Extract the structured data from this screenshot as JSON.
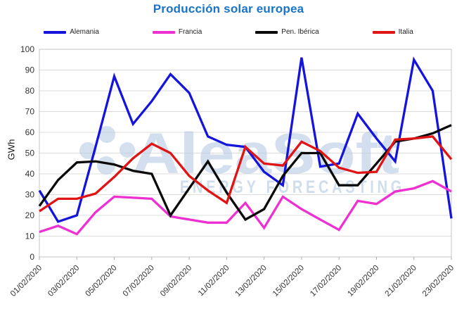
{
  "title": "Producción solar europea",
  "watermark": {
    "line1": "AleaSoft",
    "line2": "ENERGY FORECASTING"
  },
  "chart_data": {
    "type": "line",
    "title": "Producción solar europea",
    "xlabel": "",
    "ylabel": "GWh",
    "ylim": [
      0,
      100
    ],
    "ytick_step": 10,
    "grid": "horizontal",
    "legend_position": "top",
    "x": [
      "01/02/2020",
      "02/02/2020",
      "03/02/2020",
      "04/02/2020",
      "05/02/2020",
      "06/02/2020",
      "07/02/2020",
      "08/02/2020",
      "09/02/2020",
      "10/02/2020",
      "11/02/2020",
      "12/02/2020",
      "13/02/2020",
      "14/02/2020",
      "15/02/2020",
      "16/02/2020",
      "17/02/2020",
      "18/02/2020",
      "19/02/2020",
      "20/02/2020",
      "21/02/2020",
      "22/02/2020",
      "23/02/2020"
    ],
    "x_tick_shown_every": 2,
    "series": [
      {
        "name": "Alemania",
        "color": "#1414dc",
        "values": [
          32,
          17,
          20,
          53,
          87,
          64,
          75,
          88,
          79,
          58,
          54,
          53,
          41,
          34.5,
          96,
          43.5,
          45,
          69,
          57,
          46,
          95,
          80,
          18.5
        ]
      },
      {
        "name": "Francia",
        "color": "#ee30d2",
        "values": [
          12,
          15,
          11,
          21.5,
          29,
          28.5,
          28,
          19.5,
          18,
          16.5,
          16.5,
          26,
          14,
          29,
          23,
          18,
          13,
          27,
          25.5,
          31.5,
          33,
          36.5,
          31.5
        ]
      },
      {
        "name": "Pen. Ibérica",
        "color": "#0a0a0a",
        "values": [
          24.5,
          37,
          45.5,
          46,
          44.5,
          41.5,
          40,
          20,
          33,
          46,
          31,
          18,
          23,
          39,
          50,
          50,
          34.5,
          34.5,
          45,
          55.5,
          57,
          59.5,
          63.5
        ]
      },
      {
        "name": "Italia",
        "color": "#e01414",
        "values": [
          22,
          28,
          28,
          30.5,
          38.5,
          47.5,
          54.5,
          50,
          39,
          32,
          26,
          53,
          45,
          44,
          55.5,
          51,
          43,
          40.5,
          41,
          56.5,
          57,
          58,
          47
        ]
      }
    ]
  }
}
